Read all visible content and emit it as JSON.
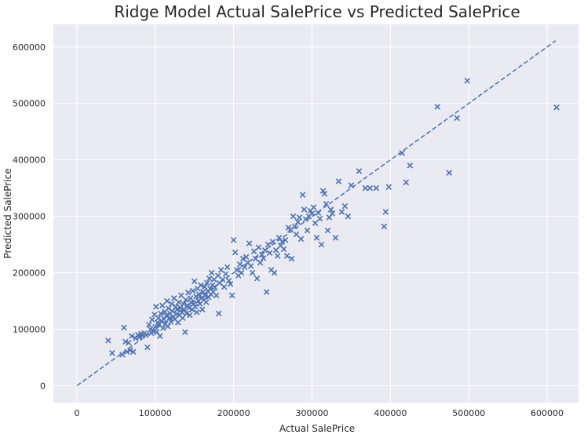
{
  "chart_data": {
    "type": "scatter",
    "title": "Ridge Model Actual SalePrice vs Predicted SalePrice",
    "xlabel": "Actual SalePrice",
    "ylabel": "Predicted SalePrice",
    "xlim": [
      -30000,
      640000
    ],
    "ylim": [
      -30000,
      640000
    ],
    "xticks": [
      0,
      100000,
      200000,
      300000,
      400000,
      500000,
      600000
    ],
    "yticks": [
      0,
      100000,
      200000,
      300000,
      400000,
      500000,
      600000
    ],
    "xtick_labels": [
      "0",
      "100000",
      "200000",
      "300000",
      "400000",
      "500000",
      "600000"
    ],
    "ytick_labels": [
      "0",
      "100000",
      "200000",
      "300000",
      "400000",
      "500000",
      "600000"
    ],
    "grid": true,
    "background": "#eaeaf2",
    "marker": "x",
    "marker_color": "#4c72b0",
    "reference_line": {
      "style": "dashed",
      "color": "#4c72b0",
      "from": [
        0,
        0
      ],
      "to": [
        611000,
        611000
      ]
    },
    "points": [
      [
        40000,
        80000
      ],
      [
        45000,
        58000
      ],
      [
        58000,
        55000
      ],
      [
        60000,
        103000
      ],
      [
        62000,
        78000
      ],
      [
        64000,
        60000
      ],
      [
        66000,
        76000
      ],
      [
        68000,
        63000
      ],
      [
        70000,
        88000
      ],
      [
        72000,
        60000
      ],
      [
        75000,
        84000
      ],
      [
        78000,
        90000
      ],
      [
        80000,
        86000
      ],
      [
        82000,
        92000
      ],
      [
        84000,
        89000
      ],
      [
        86000,
        93000
      ],
      [
        88000,
        90000
      ],
      [
        90000,
        68000
      ],
      [
        92000,
        108000
      ],
      [
        94000,
        100000
      ],
      [
        95000,
        93000
      ],
      [
        96000,
        117000
      ],
      [
        98000,
        96000
      ],
      [
        99000,
        126000
      ],
      [
        100000,
        104000
      ],
      [
        101000,
        140000
      ],
      [
        102000,
        95000
      ],
      [
        103000,
        112000
      ],
      [
        104000,
        120000
      ],
      [
        105000,
        108000
      ],
      [
        106000,
        88000
      ],
      [
        107000,
        128000
      ],
      [
        108000,
        115000
      ],
      [
        109000,
        142000
      ],
      [
        110000,
        102000
      ],
      [
        111000,
        118000
      ],
      [
        112000,
        131000
      ],
      [
        113000,
        110000
      ],
      [
        114000,
        124000
      ],
      [
        115000,
        150000
      ],
      [
        116000,
        105000
      ],
      [
        117000,
        137000
      ],
      [
        118000,
        120000
      ],
      [
        119000,
        128000
      ],
      [
        120000,
        113000
      ],
      [
        121000,
        145000
      ],
      [
        122000,
        132000
      ],
      [
        123000,
        122000
      ],
      [
        124000,
        155000
      ],
      [
        125000,
        118000
      ],
      [
        126000,
        140000
      ],
      [
        127000,
        127000
      ],
      [
        128000,
        135000
      ],
      [
        129000,
        112000
      ],
      [
        130000,
        148000
      ],
      [
        131000,
        125000
      ],
      [
        132000,
        138000
      ],
      [
        133000,
        160000
      ],
      [
        134000,
        130000
      ],
      [
        135000,
        120000
      ],
      [
        136000,
        145000
      ],
      [
        137000,
        135000
      ],
      [
        138000,
        95000
      ],
      [
        139000,
        152000
      ],
      [
        140000,
        128000
      ],
      [
        141000,
        142000
      ],
      [
        142000,
        165000
      ],
      [
        143000,
        138000
      ],
      [
        144000,
        125000
      ],
      [
        145000,
        155000
      ],
      [
        146000,
        147000
      ],
      [
        147000,
        135000
      ],
      [
        148000,
        168000
      ],
      [
        149000,
        145000
      ],
      [
        150000,
        185000
      ],
      [
        151000,
        140000
      ],
      [
        152000,
        158000
      ],
      [
        153000,
        130000
      ],
      [
        154000,
        172000
      ],
      [
        155000,
        150000
      ],
      [
        156000,
        162000
      ],
      [
        157000,
        145000
      ],
      [
        158000,
        178000
      ],
      [
        159000,
        155000
      ],
      [
        160000,
        135000
      ],
      [
        161000,
        166000
      ],
      [
        162000,
        152000
      ],
      [
        163000,
        175000
      ],
      [
        164000,
        160000
      ],
      [
        165000,
        148000
      ],
      [
        166000,
        182000
      ],
      [
        167000,
        168000
      ],
      [
        168000,
        157000
      ],
      [
        169000,
        190000
      ],
      [
        170000,
        172000
      ],
      [
        171000,
        162000
      ],
      [
        172000,
        200000
      ],
      [
        173000,
        178000
      ],
      [
        174000,
        166000
      ],
      [
        175000,
        188000
      ],
      [
        176000,
        174000
      ],
      [
        178000,
        160000
      ],
      [
        180000,
        195000
      ],
      [
        181000,
        128000
      ],
      [
        182000,
        182000
      ],
      [
        184000,
        205000
      ],
      [
        186000,
        188000
      ],
      [
        188000,
        175000
      ],
      [
        190000,
        198000
      ],
      [
        192000,
        210000
      ],
      [
        194000,
        186000
      ],
      [
        196000,
        180000
      ],
      [
        198000,
        160000
      ],
      [
        200000,
        258000
      ],
      [
        202000,
        236000
      ],
      [
        204000,
        205000
      ],
      [
        206000,
        195000
      ],
      [
        208000,
        215000
      ],
      [
        210000,
        200000
      ],
      [
        212000,
        225000
      ],
      [
        214000,
        210000
      ],
      [
        216000,
        228000
      ],
      [
        218000,
        218000
      ],
      [
        220000,
        252000
      ],
      [
        222000,
        212000
      ],
      [
        224000,
        200000
      ],
      [
        226000,
        238000
      ],
      [
        228000,
        225000
      ],
      [
        230000,
        190000
      ],
      [
        232000,
        245000
      ],
      [
        234000,
        218000
      ],
      [
        236000,
        232000
      ],
      [
        238000,
        226000
      ],
      [
        240000,
        240000
      ],
      [
        242000,
        166000
      ],
      [
        244000,
        250000
      ],
      [
        246000,
        235000
      ],
      [
        248000,
        205000
      ],
      [
        250000,
        255000
      ],
      [
        252000,
        200000
      ],
      [
        254000,
        240000
      ],
      [
        256000,
        230000
      ],
      [
        258000,
        262000
      ],
      [
        260000,
        248000
      ],
      [
        262000,
        255000
      ],
      [
        264000,
        242000
      ],
      [
        266000,
        258000
      ],
      [
        268000,
        230000
      ],
      [
        270000,
        280000
      ],
      [
        272000,
        276000
      ],
      [
        274000,
        225000
      ],
      [
        276000,
        300000
      ],
      [
        278000,
        282000
      ],
      [
        280000,
        268000
      ],
      [
        282000,
        290000
      ],
      [
        284000,
        298000
      ],
      [
        286000,
        260000
      ],
      [
        288000,
        338000
      ],
      [
        290000,
        312000
      ],
      [
        292000,
        295000
      ],
      [
        294000,
        275000
      ],
      [
        296000,
        300000
      ],
      [
        298000,
        310000
      ],
      [
        300000,
        305000
      ],
      [
        302000,
        316000
      ],
      [
        304000,
        288000
      ],
      [
        306000,
        262000
      ],
      [
        308000,
        306000
      ],
      [
        310000,
        296000
      ],
      [
        312000,
        250000
      ],
      [
        314000,
        345000
      ],
      [
        316000,
        340000
      ],
      [
        318000,
        322000
      ],
      [
        320000,
        275000
      ],
      [
        322000,
        298000
      ],
      [
        324000,
        312000
      ],
      [
        326000,
        305000
      ],
      [
        330000,
        262000
      ],
      [
        334000,
        362000
      ],
      [
        338000,
        308000
      ],
      [
        342000,
        318000
      ],
      [
        346000,
        300000
      ],
      [
        350000,
        355000
      ],
      [
        360000,
        380000
      ],
      [
        368000,
        350000
      ],
      [
        374000,
        350000
      ],
      [
        382000,
        350000
      ],
      [
        392000,
        282000
      ],
      [
        394000,
        308000
      ],
      [
        398000,
        352000
      ],
      [
        415000,
        412000
      ],
      [
        420000,
        360000
      ],
      [
        425000,
        390000
      ],
      [
        460000,
        494000
      ],
      [
        475000,
        377000
      ],
      [
        485000,
        474000
      ],
      [
        498000,
        540000
      ],
      [
        612000,
        493000
      ]
    ]
  }
}
